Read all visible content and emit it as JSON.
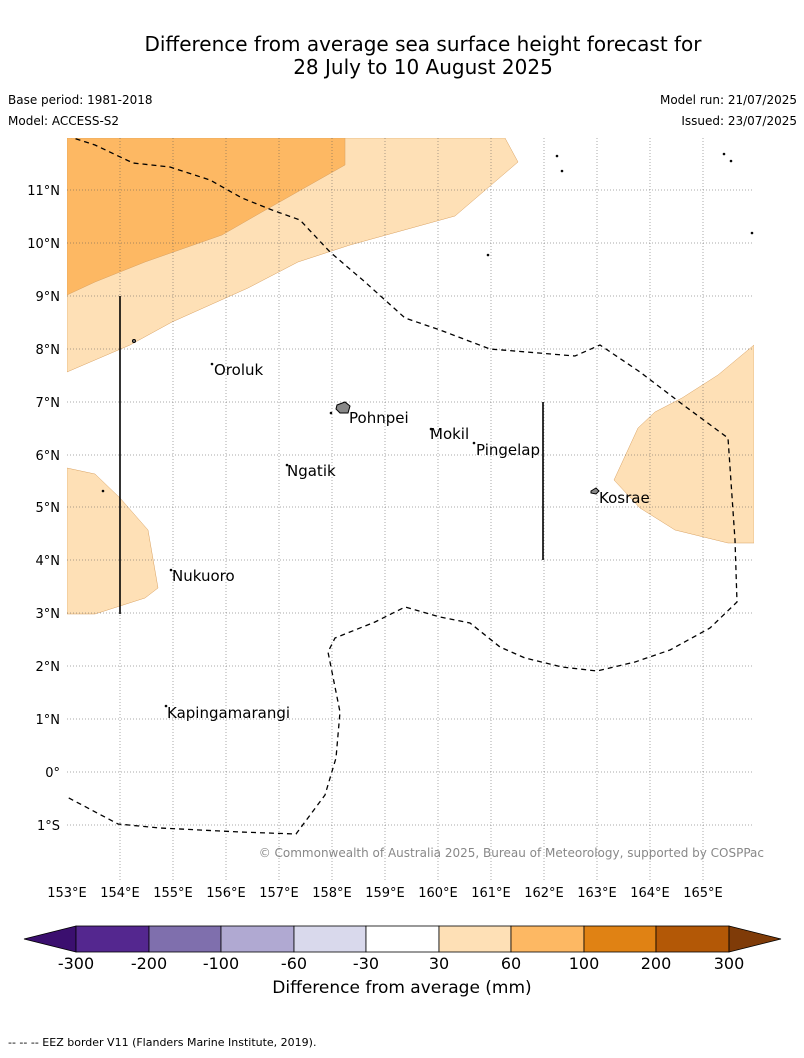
{
  "title_line1": "Difference from average sea surface height forecast for",
  "title_line2": "28 July to 10 August 2025",
  "base_period": "Base period: 1981-2018",
  "model": "Model: ACCESS-S2",
  "model_run": "Model run: 21/07/2025",
  "issued": "Issued: 23/07/2025",
  "copyright": "© Commonwealth of Australia 2025, Bureau of Meteorology, supported by COSPPac",
  "footer_note": "-- -- -- EEZ border V11 (Flanders Marine Institute, 2019).",
  "map": {
    "lon_ticks": [
      "153°E",
      "154°E",
      "155°E",
      "156°E",
      "157°E",
      "158°E",
      "159°E",
      "160°E",
      "161°E",
      "162°E",
      "163°E",
      "164°E",
      "165°E"
    ],
    "lat_ticks": [
      "11°N",
      "10°N",
      "9°N",
      "8°N",
      "7°N",
      "6°N",
      "5°N",
      "4°N",
      "3°N",
      "2°N",
      "1°N",
      "0°",
      "1°S"
    ],
    "places": [
      "Oroluk",
      "Pohnpei",
      "Mokil",
      "Pingelap",
      "Ngatik",
      "Kosrae",
      "Nukuoro",
      "Kapingamarangi"
    ]
  },
  "colorbar": {
    "title": "Difference from average (mm)",
    "ticks": [
      "-300",
      "-200",
      "-100",
      "-60",
      "-30",
      "30",
      "60",
      "100",
      "200",
      "300"
    ],
    "colors": [
      "#3b0f6f",
      "#54278f",
      "#7f6fad",
      "#b0a9d2",
      "#d9d9ec",
      "#ffffff",
      "#fee0b6",
      "#fdb863",
      "#e08214",
      "#b35806",
      "#7f3b08"
    ]
  }
}
